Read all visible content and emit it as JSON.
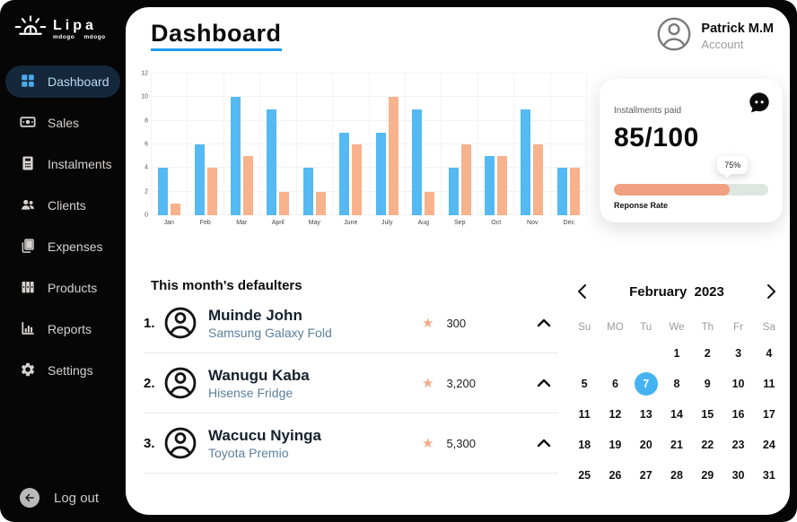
{
  "logo": {
    "name": "Lipa",
    "subtitle": "mdogo  mdogo"
  },
  "sidebar": {
    "items": [
      {
        "label": "Dashboard",
        "icon": "dashboard-grid-icon",
        "active": true
      },
      {
        "label": "Sales",
        "icon": "money-icon",
        "active": false
      },
      {
        "label": "Instalments",
        "icon": "calculator-icon",
        "active": false
      },
      {
        "label": "Clients",
        "icon": "people-icon",
        "active": false
      },
      {
        "label": "Expenses",
        "icon": "documents-icon",
        "active": false
      },
      {
        "label": "Products",
        "icon": "binders-icon",
        "active": false
      },
      {
        "label": "Reports",
        "icon": "bar-chart-icon",
        "active": false
      },
      {
        "label": "Settings",
        "icon": "gear-icon",
        "active": false
      }
    ],
    "logout_label": "Log out"
  },
  "header": {
    "title": "Dashboard",
    "user_name": "Patrick M.M",
    "user_role": "Account"
  },
  "chart_data": {
    "type": "bar",
    "categories": [
      "Jan",
      "Feb",
      "Mar",
      "April",
      "May",
      "June",
      "July",
      "Aug",
      "Sep",
      "Oct",
      "Nov",
      "Dec"
    ],
    "series": [
      {
        "name": "blue",
        "color": "#55b9f3",
        "values": [
          4,
          6,
          10,
          9,
          4,
          7,
          7,
          9,
          4,
          5,
          9,
          4
        ]
      },
      {
        "name": "orange",
        "color": "#f8b28c",
        "values": [
          1,
          4,
          5,
          2,
          2,
          6,
          10,
          2,
          6,
          5,
          6,
          4
        ]
      }
    ],
    "yticks": [
      0,
      2,
      4,
      6,
      8,
      10,
      12
    ],
    "ylim": [
      0,
      12
    ],
    "title": "",
    "xlabel": "",
    "ylabel": "",
    "grid": true,
    "legend": false
  },
  "installments_card": {
    "label": "Installments paid",
    "value": "85/100",
    "tooltip": "75%",
    "progress_percent": 75,
    "progress_label": "Reponse Rate",
    "fill_color": "#f0a181",
    "track_color": "#dfe5df"
  },
  "defaulters": {
    "heading": "This month's  defaulters",
    "items": [
      {
        "rank": "1.",
        "name": "Muinde John",
        "item": "Samsung Galaxy Fold",
        "amount": "300"
      },
      {
        "rank": "2.",
        "name": "Wanugu Kaba",
        "item": "Hisense Fridge",
        "amount": "3,200"
      },
      {
        "rank": "3.",
        "name": "Wacucu Nyinga",
        "item": "Toyota Premio",
        "amount": "5,300"
      }
    ]
  },
  "calendar": {
    "title": "February  2023",
    "day_headers": [
      "Su",
      "MO",
      "Tu",
      "We",
      "Th",
      "Fr",
      "Sa"
    ],
    "weeks": [
      [
        "",
        "",
        "",
        "1",
        "2",
        "3",
        "4"
      ],
      [
        "5",
        "6",
        "7",
        "8",
        "9",
        "10",
        "11"
      ],
      [
        "11",
        "12",
        "13",
        "14",
        "15",
        "16",
        "17"
      ],
      [
        "18",
        "19",
        "20",
        "21",
        "22",
        "23",
        "24"
      ],
      [
        "25",
        "26",
        "27",
        "28",
        "29",
        "30",
        "31"
      ]
    ],
    "selected": {
      "week": 1,
      "day": 2
    }
  },
  "colors": {
    "sidebar_bg": "#060606",
    "active_item_bg": "#15283b",
    "active_item_text": "#b9d8f1",
    "active_item_icon": "#4da9e8",
    "title_underline": "#1e9bf0",
    "bar_blue": "#55b9f3",
    "bar_orange": "#f8b28c",
    "subtitle_blue_gray": "#5d7f9d",
    "star": "#f2a98a",
    "calendar_selected": "#45b2f2"
  }
}
